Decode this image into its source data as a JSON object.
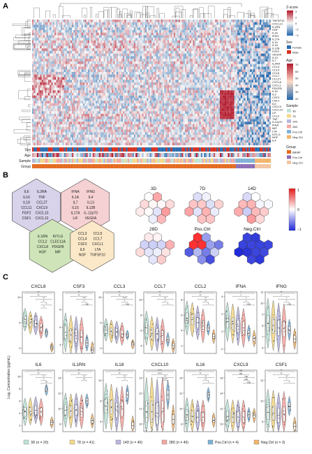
{
  "panels": {
    "a": {
      "letter": "A",
      "zscore_legend": {
        "title": "Z-score",
        "ticks": [
          "4",
          "2",
          "0",
          "−2",
          "−4"
        ],
        "colors": [
          "#b2182b",
          "#f7f7f7",
          "#2166ac"
        ]
      },
      "sex_legend": {
        "title": "Sex",
        "items": [
          {
            "label": "Female",
            "color": "#2c6db0"
          },
          {
            "label": "Male",
            "color": "#d7301f"
          }
        ]
      },
      "age_legend": {
        "title": "Age",
        "ticks": [
          "70",
          "60",
          "50",
          "40",
          "30",
          "20"
        ],
        "colors": [
          "#b2182b",
          "#fddbc7",
          "#2166ac"
        ]
      },
      "sample_legend": {
        "title": "Sample",
        "items": [
          {
            "label": "3D",
            "color": "#bfe3d6"
          },
          {
            "label": "7D",
            "color": "#f3d98b"
          },
          {
            "label": "14D",
            "color": "#b9b6dc"
          },
          {
            "label": "28D",
            "color": "#f4a9a4"
          },
          {
            "label": "Pos.Ctrl",
            "color": "#7fb2d6"
          },
          {
            "label": "Neg.Ctrl",
            "color": "#f1b46c"
          }
        ]
      },
      "group_legend": {
        "title": "Group",
        "items": [
          {
            "label": "BBIBP",
            "color": "#e46a1f"
          },
          {
            "label": "Pos.Ctrl",
            "color": "#8b6db4"
          },
          {
            "label": "Neg.Ctrl",
            "color": "#f2c4a0"
          }
        ]
      },
      "row_annotation_labels": [
        "Sex",
        "Age",
        "Sample",
        "Group"
      ],
      "gene_labels": [
        "TNFSF10",
        "CXCL12",
        "IL1RN",
        "HGF",
        "IL18",
        "IFNG",
        "IL17A",
        "IL15",
        "IL1A",
        "IL12B",
        "FGF2",
        "VEGFA",
        "IL13",
        "IL7",
        "IL2RA",
        "CCL3",
        "CCL4",
        "CCL5",
        "CCL7",
        "CCL27",
        "CXCL8",
        "CXCL1",
        "PDGFB",
        "IL16",
        "IL9",
        "CSF3",
        "CSF1",
        "IL6",
        "CXCL9",
        "CXCL10",
        "LIF",
        "CCL2",
        "TNF",
        "IL12p70",
        "IFNA",
        "MIF",
        "LTA",
        "KITLG",
        "NGF",
        "IL4"
      ]
    },
    "b": {
      "letter": "B",
      "clusters": [
        {
          "name": "purple",
          "color": "#d8d2ea",
          "genes": [
            "IL6",
            "IL2RA",
            "IL16",
            "TNF",
            "IL18",
            "CCL27",
            "CCL11",
            "CXCL9",
            "FGF2",
            "CXCL10",
            "CSF1",
            "CXCL12"
          ]
        },
        {
          "name": "pink",
          "color": "#f6d1d3",
          "genes": [
            "IFNA",
            "IFNG",
            "IL1A",
            "IL4",
            "IL7",
            "IL13",
            "IL15",
            "IL12B",
            "IL17A",
            "IL-12p70",
            "LIF",
            "VEGFA"
          ]
        },
        {
          "name": "green",
          "color": "#cfe5b9",
          "genes": [
            "IL1RN",
            "KITLG",
            "CCL2",
            "CLEC11A",
            "CXCL8",
            "PDGFB",
            "HGF",
            "MIF"
          ]
        },
        {
          "name": "yellow",
          "color": "#fbe8c8",
          "genes": [
            "CCL3",
            "CCL5",
            "CCL4",
            "CCL7",
            "CSF3",
            "CXCL1",
            "IL9",
            "LTA",
            "NGF",
            "TNFSF10"
          ]
        }
      ],
      "maps": [
        {
          "label": "3D"
        },
        {
          "label": "7D"
        },
        {
          "label": "14D"
        },
        {
          "label": "28D"
        },
        {
          "label": "Pos.Ctrl"
        },
        {
          "label": "Neg.Ctrl"
        }
      ],
      "colorbar": {
        "ticks": [
          "1",
          "0",
          "−1"
        ],
        "colors": [
          "#e41a1c",
          "#ffffff",
          "#1f2ad8"
        ]
      }
    },
    "c": {
      "letter": "C",
      "ylabel": "Log₂ Concentration (pg/mL)",
      "legend": [
        {
          "label": "3D (n = 20)",
          "color": "#bfe3d6"
        },
        {
          "label": "7D (n = 41)",
          "color": "#f3d98b"
        },
        {
          "label": "14D (n = 40)",
          "color": "#b9b6dc"
        },
        {
          "label": "28D (n = 40)",
          "color": "#f4a9a4"
        },
        {
          "label": "Pos.Ctrl (n = 4)",
          "color": "#7fb2d6"
        },
        {
          "label": "Neg.Ctrl (n = 3)",
          "color": "#f1b46c"
        }
      ]
    }
  },
  "chart_data": [
    {
      "type": "violin",
      "title": "CXCL8",
      "yticks": [
        "10",
        "5",
        "0"
      ],
      "ylim": [
        -1,
        11
      ],
      "medians": [
        5.6,
        5.0,
        4.8,
        4.1,
        3.0,
        0.2
      ],
      "sig": [
        "**",
        "**",
        "**",
        "*",
        "*",
        "*"
      ]
    },
    {
      "type": "violin",
      "title": "CSF3",
      "yticks": [
        "8",
        "6",
        "4"
      ],
      "ylim": [
        3,
        10
      ],
      "medians": [
        5.4,
        5.1,
        5.0,
        4.9,
        4.2,
        3.4
      ],
      "sig": [
        "**",
        "**",
        "***",
        "*",
        "ns"
      ]
    },
    {
      "type": "violin",
      "title": "CCL3",
      "yticks": [
        "10",
        "5",
        "0"
      ],
      "ylim": [
        -1,
        11
      ],
      "medians": [
        3.6,
        3.3,
        3.1,
        2.8,
        2.6,
        0.8
      ],
      "sig": [
        "**",
        "**",
        "****",
        "*",
        "ns"
      ]
    },
    {
      "type": "violin",
      "title": "CCL7",
      "yticks": [
        "10",
        "8",
        "6",
        "4"
      ],
      "ylim": [
        3,
        11
      ],
      "medians": [
        6.3,
        5.6,
        5.5,
        5.3,
        4.8,
        4.0
      ],
      "sig": [
        "**",
        "**",
        "**",
        "*",
        "*"
      ]
    },
    {
      "type": "violin",
      "title": "CCL2",
      "yticks": [
        "8",
        "6",
        "4",
        "2"
      ],
      "ylim": [
        1,
        9
      ],
      "medians": [
        5.6,
        5.4,
        5.0,
        4.6,
        4.3,
        3.2
      ],
      "sig": [
        "**",
        "**",
        "**",
        "**",
        "*"
      ]
    },
    {
      "type": "violin",
      "title": "IFNA",
      "yticks": [
        "4",
        "2",
        "0",
        "-2"
      ],
      "ylim": [
        -2.5,
        4.5
      ],
      "medians": [
        1.1,
        0.9,
        0.6,
        0.4,
        -0.2,
        -0.8
      ],
      "sig": [
        "*",
        "*",
        "*",
        "*",
        "ns"
      ]
    },
    {
      "type": "violin",
      "title": "IFNG",
      "yticks": [
        "11",
        "10",
        "9",
        "8",
        "7",
        "6"
      ],
      "ylim": [
        5.5,
        11
      ],
      "medians": [
        8.2,
        8.0,
        7.8,
        7.7,
        7.6,
        6.8
      ],
      "sig": [
        "**",
        "*",
        "*",
        "*",
        "ns"
      ]
    },
    {
      "type": "violin",
      "title": "IL6",
      "yticks": [
        "10",
        "8",
        "6",
        "4",
        "2"
      ],
      "ylim": [
        1,
        11
      ],
      "medians": [
        4.2,
        4.3,
        4.5,
        4.2,
        7.8,
        2.5
      ],
      "sig": [
        "**",
        "**",
        "**",
        "*",
        "**"
      ]
    },
    {
      "type": "violin",
      "title": "IL1RN",
      "yticks": [
        "14",
        "12",
        "10",
        "8"
      ],
      "ylim": [
        7,
        15
      ],
      "medians": [
        9.8,
        9.7,
        9.8,
        9.6,
        11.0,
        8.4
      ],
      "sig": [
        "**",
        "**",
        "**",
        "**"
      ]
    },
    {
      "type": "violin",
      "title": "IL18",
      "yticks": [
        "10",
        "8",
        "6"
      ],
      "ylim": [
        5,
        11
      ],
      "medians": [
        7.5,
        7.4,
        7.1,
        7.2,
        8.6,
        5.6
      ],
      "sig": [
        "**",
        "**",
        "**",
        "*"
      ]
    },
    {
      "type": "violin",
      "title": "CXCL10",
      "yticks": [
        "13",
        "12",
        "11",
        "10"
      ],
      "ylim": [
        9.5,
        13.5
      ],
      "medians": [
        10.8,
        10.8,
        10.7,
        10.8,
        11.9,
        10.3
      ],
      "sig": [
        "****",
        "****",
        "**",
        "****"
      ]
    },
    {
      "type": "violin",
      "title": "IL16",
      "yticks": [
        "14",
        "12",
        "10",
        "8"
      ],
      "ylim": [
        7,
        15
      ],
      "medians": [
        9.2,
        9.0,
        8.9,
        8.9,
        11.8,
        8.5
      ],
      "sig": [
        "**",
        "**",
        "**",
        "**",
        "*"
      ]
    },
    {
      "type": "violin",
      "title": "CXCL9",
      "yticks": [
        "16",
        "14",
        "12",
        "10"
      ],
      "ylim": [
        9,
        17
      ],
      "medians": [
        11.0,
        10.9,
        10.9,
        10.9,
        11.2,
        11.1
      ],
      "sig": [
        "ns",
        "ns",
        "ns",
        "ns",
        "ns"
      ]
    },
    {
      "type": "violin",
      "title": "CSF1",
      "yticks": [
        "12",
        "10",
        "8"
      ],
      "ylim": [
        7,
        13
      ],
      "medians": [
        8.9,
        8.8,
        8.6,
        8.7,
        9.5,
        7.5
      ],
      "sig": [
        "**",
        "**",
        "**",
        "*",
        "*"
      ]
    }
  ]
}
